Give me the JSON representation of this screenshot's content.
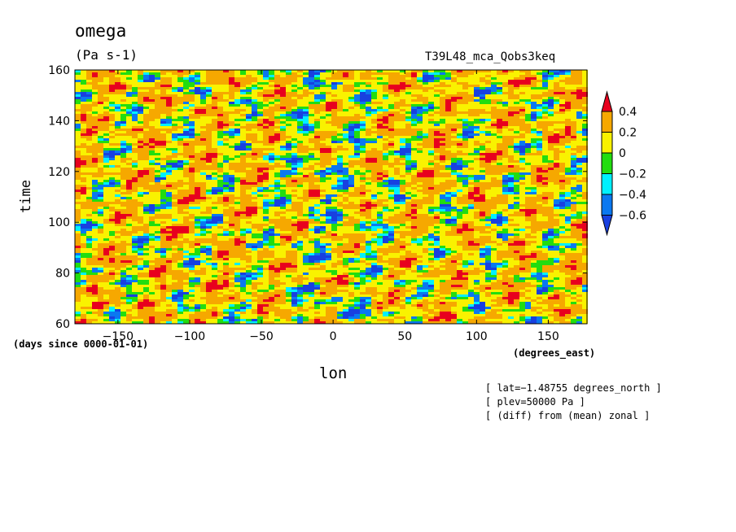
{
  "chart_data": {
    "type": "heatmap",
    "title": "omega",
    "units": "(Pa s-1)",
    "run_label": "T39L48_mca_Qobs3keq",
    "xlabel": "lon",
    "ylabel": "time",
    "x_units": "(degrees_east)",
    "y_units": "(days since 0000-01-01)",
    "xlim": [
      -180,
      177
    ],
    "ylim": [
      60,
      160
    ],
    "x_ticks": [
      -150,
      -100,
      -50,
      0,
      50,
      100,
      150
    ],
    "x_tick_labels": [
      "−150",
      "−100",
      "−50",
      "0",
      "50",
      "100",
      "150"
    ],
    "y_ticks": [
      60,
      80,
      100,
      120,
      140,
      160
    ],
    "y_tick_labels": [
      "60",
      "80",
      "100",
      "120",
      "140",
      "160"
    ],
    "colorbar": {
      "levels": [
        0.4,
        0.2,
        0,
        -0.2,
        -0.4,
        -0.6
      ],
      "level_labels": [
        "0.4",
        "0.2",
        "0",
        "−0.2",
        "−0.4",
        "−0.6"
      ],
      "colors": [
        "#e8001e",
        "#f6a800",
        "#f9f200",
        "#22dd10",
        "#00f0ff",
        "#0a78f0",
        "#1840e0"
      ],
      "extend": "both"
    },
    "notes": [
      "[ lat=−1.48755 degrees_north ]",
      "[ plev=50000 Pa ]",
      "[ (diff) from (mean) zonal ]"
    ],
    "grid": false,
    "legend_placement": "right"
  }
}
